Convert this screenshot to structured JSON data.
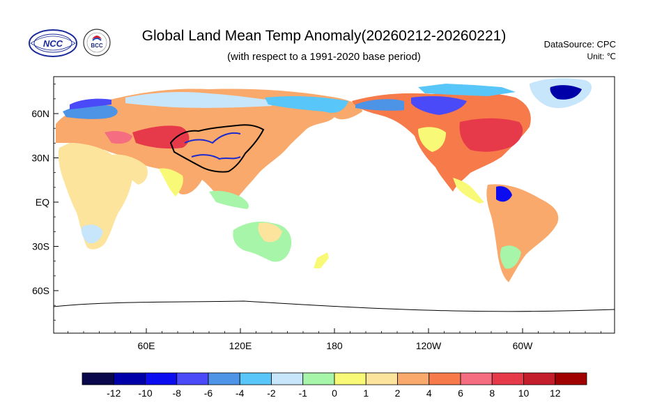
{
  "header": {
    "title": "Global Land Mean Temp Anomaly(20260212-20260221)",
    "subtitle": "(with respect to a 1991-2020 base period)",
    "data_source": "DataSource:  CPC",
    "unit": "Unit:  ℃"
  },
  "logos": {
    "left_org": "NCC",
    "right_org": "BCC"
  },
  "map": {
    "lat_labels": [
      "60N",
      "30N",
      "EQ",
      "30S",
      "60S"
    ],
    "lat_values": [
      60,
      30,
      0,
      -30,
      -60
    ],
    "lon_labels": [
      "60E",
      "120E",
      "180",
      "120W",
      "60W"
    ],
    "lon_values": [
      60,
      120,
      180,
      240,
      300
    ]
  },
  "colorbar": {
    "colors": [
      "#08084a",
      "#0000a8",
      "#0c0cf0",
      "#4a4af8",
      "#4d94e6",
      "#58c6f8",
      "#c8e6fb",
      "#a6f5a9",
      "#f9f978",
      "#fde49c",
      "#f9a96b",
      "#f77a4b",
      "#f46d80",
      "#e63a4a",
      "#c41d2c",
      "#a00000"
    ],
    "labels": [
      "-12",
      "-10",
      "-8",
      "-6",
      "-4",
      "-2",
      "-1",
      "0",
      "1",
      "2",
      "4",
      "6",
      "8",
      "10",
      "12"
    ]
  }
}
